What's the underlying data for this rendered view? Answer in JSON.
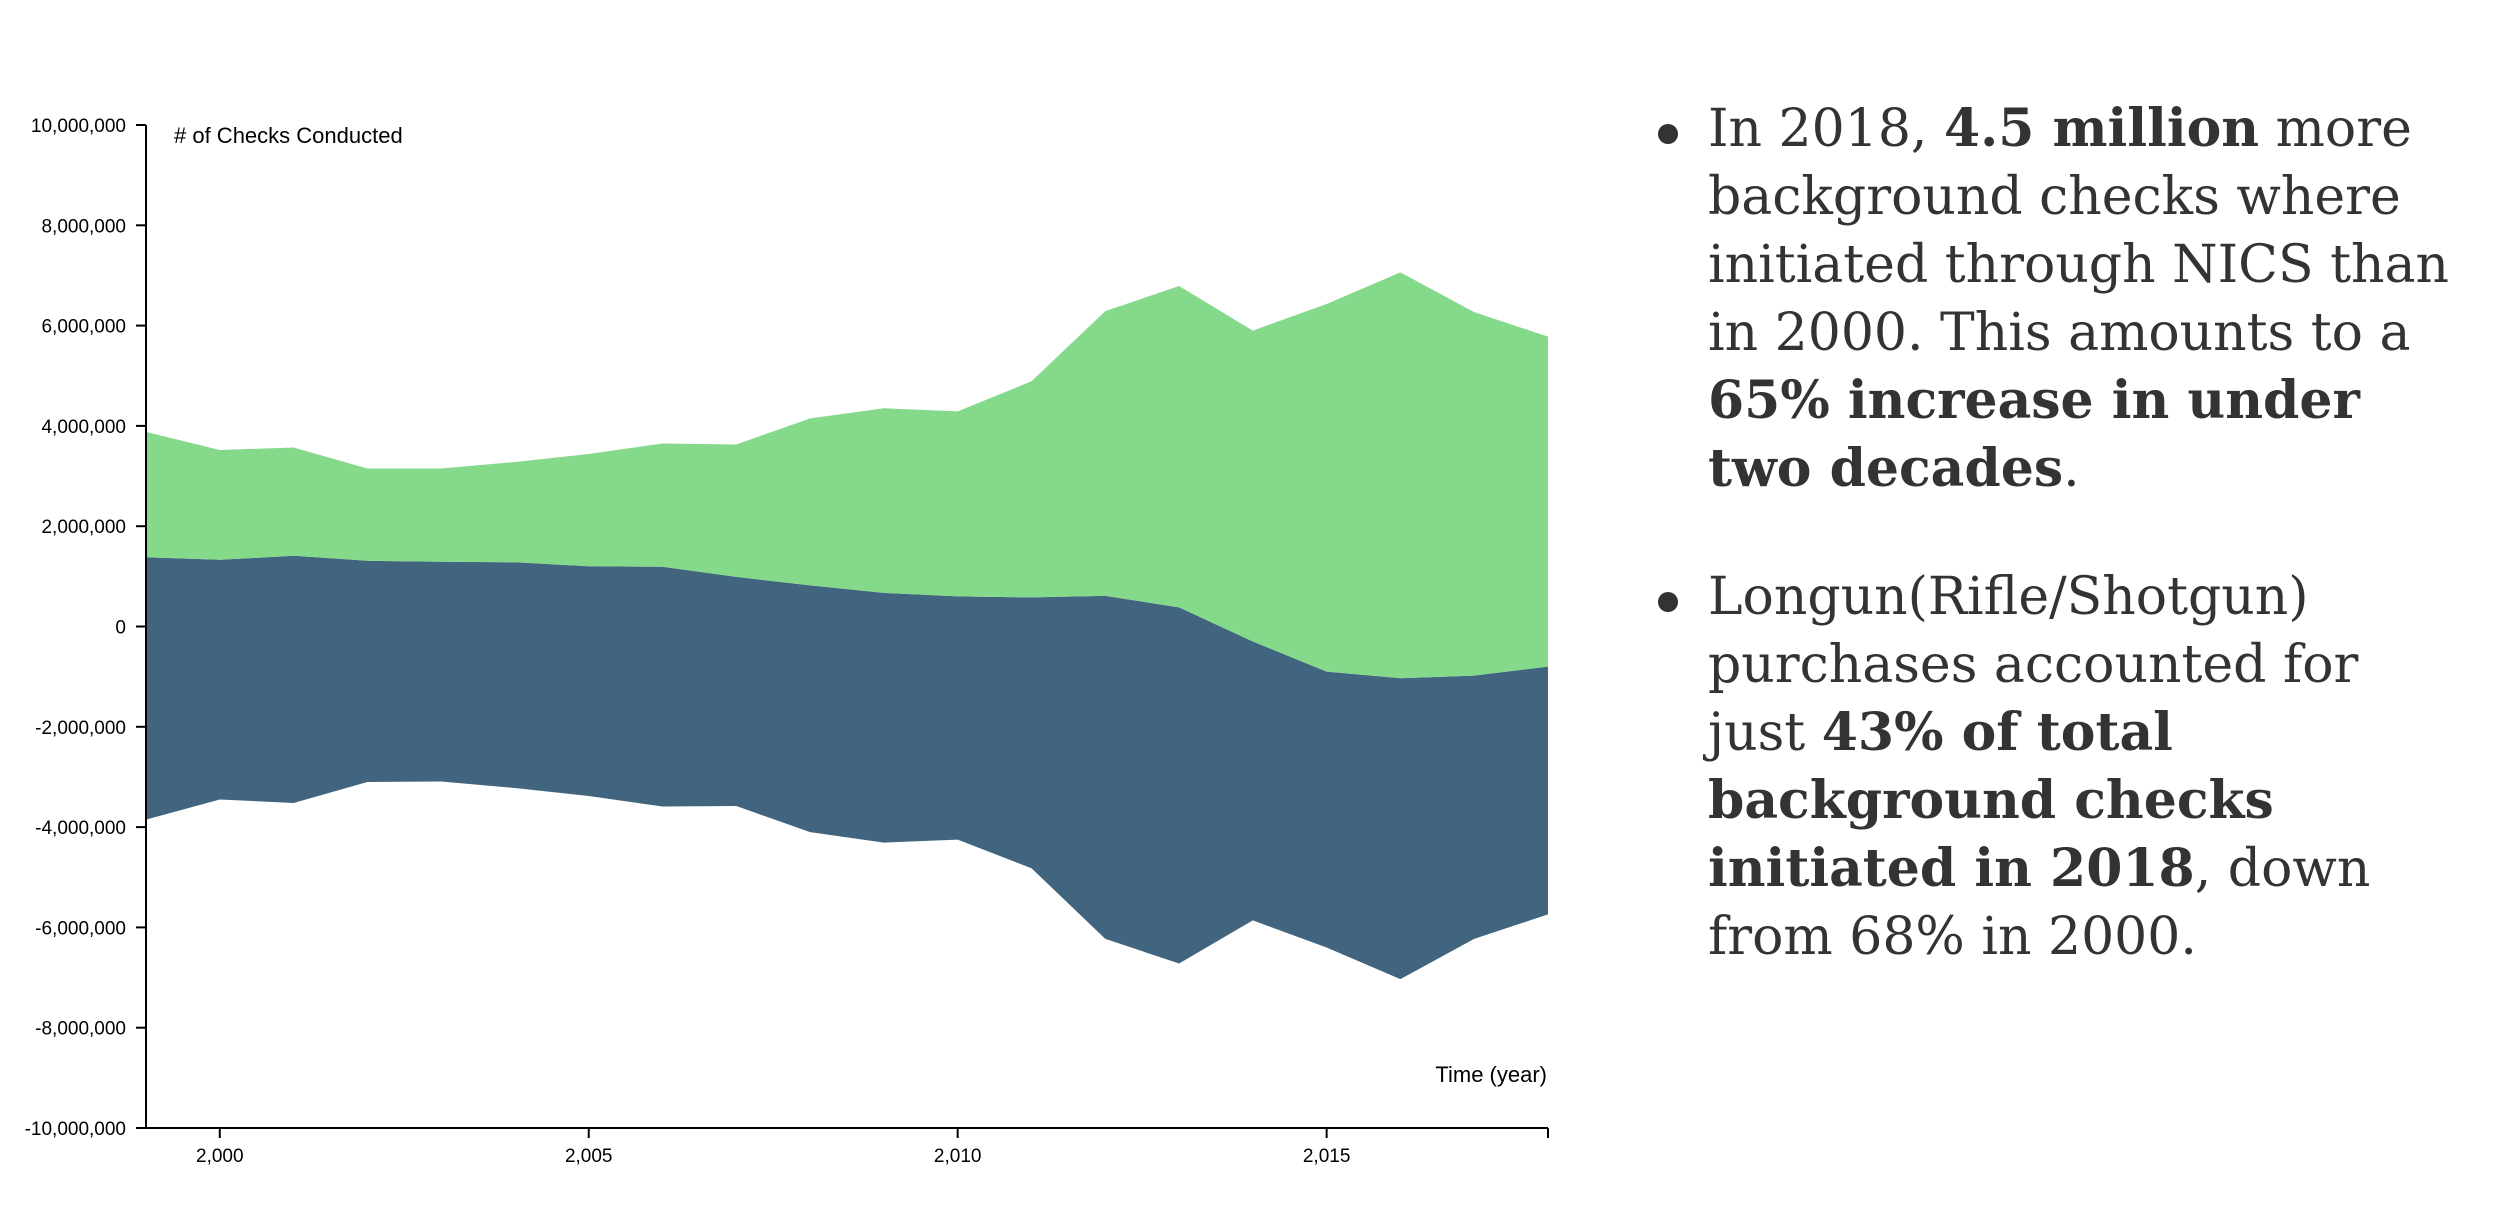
{
  "chart_data": {
    "type": "area",
    "ylabel": "# of Checks Conducted",
    "xlabel": "Time (year)",
    "ylim": [
      -10000000,
      10000000
    ],
    "xlim": [
      1999,
      2018
    ],
    "y_ticks": [
      "10,000,000",
      "8,000,000",
      "6,000,000",
      "4,000,000",
      "2,000,000",
      "0",
      "-2,000,000",
      "-4,000,000",
      "-6,000,000",
      "-8,000,000",
      "-10,000,000"
    ],
    "y_tick_values": [
      10000000,
      8000000,
      6000000,
      4000000,
      2000000,
      0,
      -2000000,
      -4000000,
      -6000000,
      -8000000,
      -10000000
    ],
    "x_ticks": [
      "2,000",
      "2,005",
      "2,010",
      "2,015"
    ],
    "x_tick_values": [
      2000,
      2005,
      2010,
      2015
    ],
    "x": [
      1999,
      2000,
      2001,
      2002,
      2003,
      2004,
      2005,
      2006,
      2007,
      2008,
      2009,
      2010,
      2011,
      2012,
      2013,
      2014,
      2015,
      2016,
      2017,
      2018
    ],
    "series": [
      {
        "color": "#41657e",
        "lower": [
          -3850000,
          -3450000,
          -3520000,
          -3100000,
          -3090000,
          -3220000,
          -3380000,
          -3590000,
          -3580000,
          -4100000,
          -4310000,
          -4250000,
          -4820000,
          -6230000,
          -6720000,
          -5860000,
          -6400000,
          -7030000,
          -6230000,
          -5740000
        ],
        "upper": [
          1380000,
          1330000,
          1410000,
          1310000,
          1290000,
          1280000,
          1200000,
          1190000,
          990000,
          820000,
          670000,
          600000,
          580000,
          610000,
          380000,
          -300000,
          -900000,
          -1030000,
          -980000,
          -800000
        ]
      },
      {
        "color": "#85d98b",
        "lower": [
          1380000,
          1330000,
          1410000,
          1310000,
          1290000,
          1280000,
          1200000,
          1190000,
          990000,
          820000,
          670000,
          600000,
          580000,
          610000,
          380000,
          -300000,
          -900000,
          -1030000,
          -980000,
          -800000
        ],
        "upper": [
          3880000,
          3520000,
          3570000,
          3150000,
          3150000,
          3280000,
          3440000,
          3650000,
          3630000,
          4150000,
          4350000,
          4290000,
          4890000,
          6290000,
          6790000,
          5900000,
          6430000,
          7060000,
          6270000,
          5780000
        ]
      }
    ]
  },
  "notes": [
    {
      "t1": "In 2018, ",
      "b1": "4.5 million",
      "t2": " more background checks where initiated through NICS than in 2000. This amounts to a ",
      "b2": "65% increase in under two decades",
      "t3": "."
    },
    {
      "t1": "Longun(Rifle/Shotgun) purchases accounted for just ",
      "b1": "43% of total background checks initiated in 2018",
      "t2": ", down from 68% in 2000."
    }
  ]
}
